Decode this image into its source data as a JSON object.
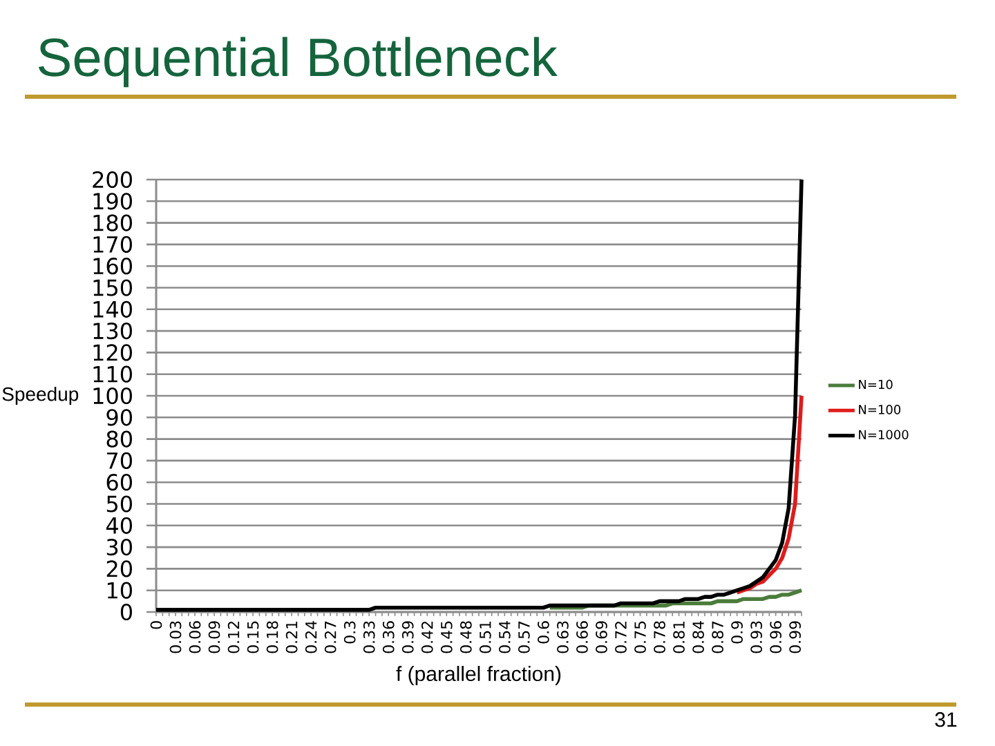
{
  "chart_data": {
    "type": "line",
    "title": "Sequential Bottleneck",
    "xlabel": "f (parallel fraction)",
    "ylabel": "Speedup",
    "annotations": [
      "31"
    ],
    "categories": [
      "0",
      null,
      null,
      "0.03",
      null,
      null,
      "0.06",
      null,
      null,
      "0.09",
      null,
      null,
      "0.12",
      null,
      null,
      "0.15",
      null,
      null,
      "0.18",
      null,
      null,
      "0.21",
      null,
      null,
      "0.24",
      null,
      null,
      "0.27",
      null,
      null,
      "0.3",
      null,
      null,
      "0.33",
      null,
      null,
      "0.36",
      null,
      null,
      "0.39",
      null,
      null,
      "0.42",
      null,
      null,
      "0.45",
      null,
      null,
      "0.48",
      null,
      null,
      "0.51",
      null,
      null,
      "0.54",
      null,
      null,
      "0.57",
      null,
      null,
      "0.6",
      null,
      null,
      "0.63",
      null,
      null,
      "0.66",
      null,
      null,
      "0.69",
      null,
      null,
      "0.72",
      null,
      null,
      "0.75",
      null,
      null,
      "0.78",
      null,
      null,
      "0.81",
      null,
      null,
      "0.84",
      null,
      null,
      "0.87",
      null,
      null,
      "0.9",
      null,
      null,
      "0.93",
      null,
      null,
      "0.96",
      null,
      null,
      "0.99",
      null
    ],
    "series": [
      {
        "name": "N=10",
        "color": "#4a7c3a",
        "values": [
          null,
          null,
          null,
          null,
          null,
          null,
          null,
          null,
          null,
          null,
          null,
          null,
          null,
          null,
          null,
          null,
          null,
          null,
          null,
          null,
          null,
          null,
          null,
          null,
          null,
          null,
          null,
          null,
          null,
          null,
          null,
          null,
          null,
          null,
          null,
          null,
          null,
          null,
          null,
          null,
          null,
          null,
          null,
          null,
          null,
          null,
          null,
          null,
          null,
          null,
          null,
          null,
          null,
          null,
          null,
          null,
          null,
          null,
          null,
          null,
          null,
          2,
          2,
          2,
          2,
          2,
          2,
          3,
          3,
          3,
          3,
          3,
          3,
          3,
          3,
          3,
          3,
          3,
          3,
          3,
          4,
          4,
          4,
          4,
          4,
          4,
          4,
          5,
          5,
          5,
          5,
          6,
          6,
          6,
          6,
          7,
          7,
          8,
          8,
          9,
          10
        ]
      },
      {
        "name": "N=100",
        "color": "#e01b1b",
        "values": [
          null,
          null,
          null,
          null,
          null,
          null,
          null,
          null,
          null,
          null,
          null,
          null,
          null,
          null,
          null,
          null,
          null,
          null,
          null,
          null,
          null,
          null,
          null,
          null,
          null,
          null,
          null,
          null,
          null,
          null,
          null,
          null,
          null,
          null,
          null,
          null,
          null,
          null,
          null,
          null,
          null,
          null,
          null,
          null,
          null,
          null,
          null,
          null,
          null,
          null,
          null,
          null,
          null,
          null,
          null,
          null,
          null,
          null,
          null,
          null,
          null,
          null,
          null,
          null,
          null,
          null,
          null,
          null,
          null,
          null,
          null,
          null,
          null,
          null,
          null,
          null,
          null,
          null,
          null,
          null,
          null,
          null,
          null,
          null,
          null,
          null,
          null,
          null,
          null,
          null,
          9,
          10,
          11,
          13,
          14,
          17,
          20,
          25,
          34,
          50,
          100
        ]
      },
      {
        "name": "N=1000",
        "color": "#000000",
        "values": [
          1,
          1,
          1,
          1,
          1,
          1,
          1,
          1,
          1,
          1,
          1,
          1,
          1,
          1,
          1,
          1,
          1,
          1,
          1,
          1,
          1,
          1,
          1,
          1,
          1,
          1,
          1,
          1,
          1,
          1,
          1,
          1,
          1,
          1,
          2,
          2,
          2,
          2,
          2,
          2,
          2,
          2,
          2,
          2,
          2,
          2,
          2,
          2,
          2,
          2,
          2,
          2,
          2,
          2,
          2,
          2,
          2,
          2,
          2,
          2,
          2,
          3,
          3,
          3,
          3,
          3,
          3,
          3,
          3,
          3,
          3,
          3,
          4,
          4,
          4,
          4,
          4,
          4,
          5,
          5,
          5,
          5,
          6,
          6,
          6,
          7,
          7,
          8,
          8,
          9,
          10,
          11,
          12,
          14,
          16,
          20,
          24,
          32,
          48,
          91,
          200
        ]
      }
    ],
    "ylim": [
      0,
      200
    ],
    "yticks": [
      0,
      10,
      20,
      30,
      40,
      50,
      60,
      70,
      80,
      90,
      100,
      110,
      120,
      130,
      140,
      150,
      160,
      170,
      180,
      190,
      200
    ],
    "grid": "y",
    "legend": "right"
  }
}
